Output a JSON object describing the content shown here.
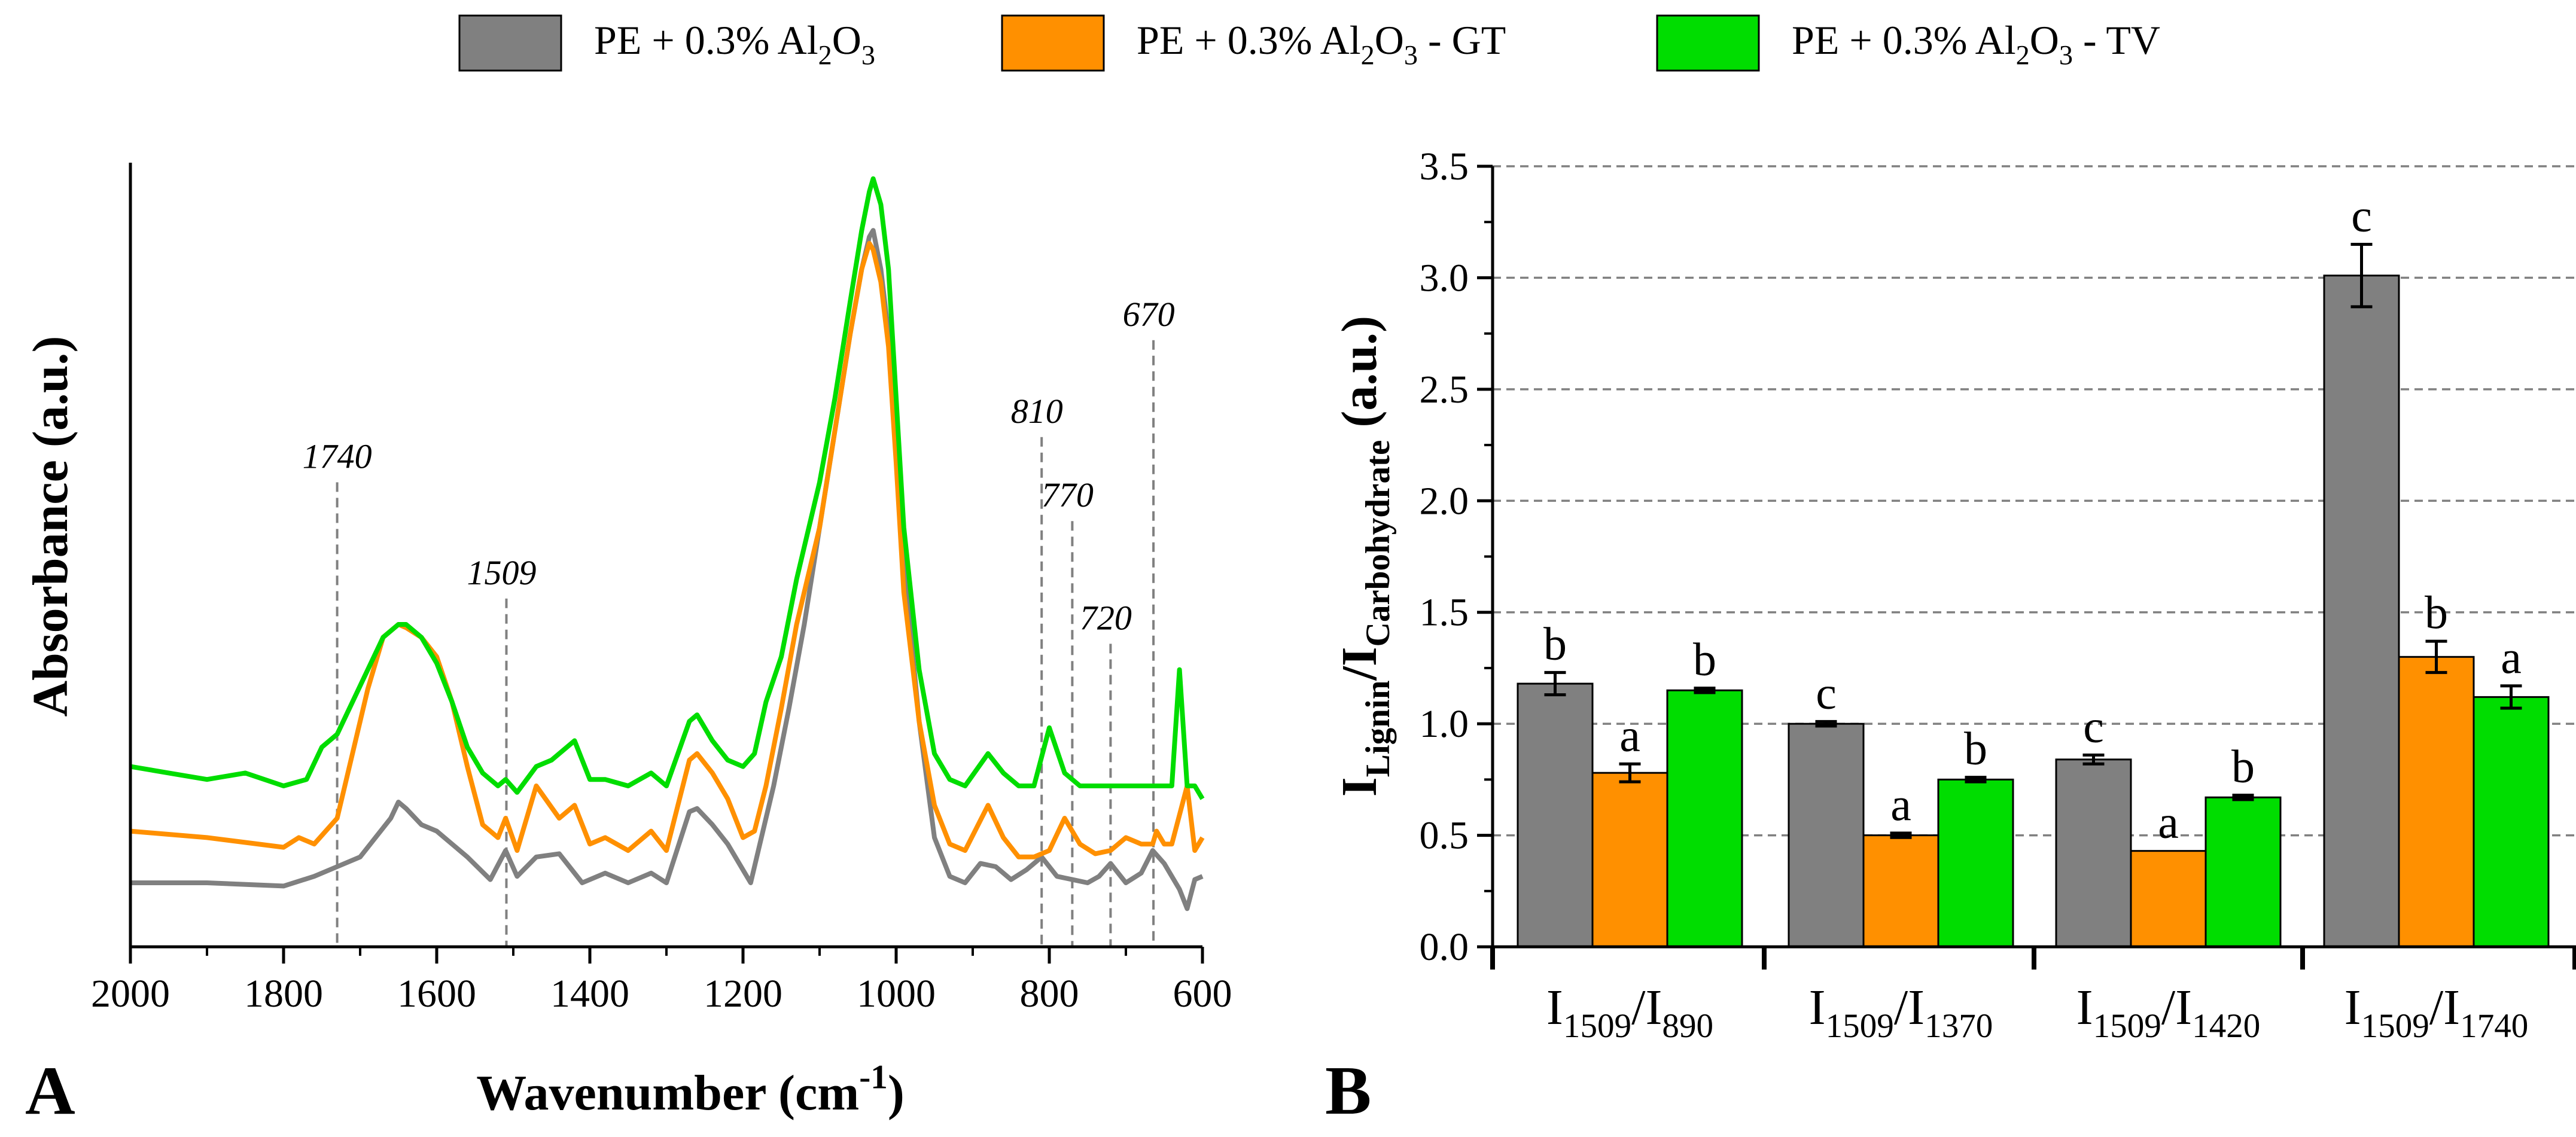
{
  "colors": {
    "gray": "#808080",
    "orange": "#ff9000",
    "green": "#00dd00",
    "grid": "#808080"
  },
  "legend": [
    {
      "pre": "PE + 0.3% Al",
      "s1": "2",
      "mid": "O",
      "s2": "3",
      "post": "",
      "color": "#808080"
    },
    {
      "pre": "PE + 0.3% Al",
      "s1": "2",
      "mid": "O",
      "s2": "3",
      "post": " - GT",
      "color": "#ff9000"
    },
    {
      "pre": "PE + 0.3% Al",
      "s1": "2",
      "mid": "O",
      "s2": "3",
      "post": " - TV",
      "color": "#00dd00"
    }
  ],
  "chart_data": [
    {
      "panel": "A",
      "type": "line",
      "xlabel": {
        "main": "Wavenumber (cm",
        "sup": "-1",
        "close": ")"
      },
      "ylabel": "Absorbance (a.u.)",
      "xlim": [
        2000,
        600
      ],
      "xticks": [
        2000,
        1800,
        1600,
        1400,
        1200,
        1000,
        800,
        600
      ],
      "peak_markers": [
        {
          "label": "1740",
          "x": 1730,
          "top": 0.67
        },
        {
          "label": "1509",
          "x": 1509,
          "top": 0.49
        },
        {
          "label": "810",
          "x": 810,
          "top": 0.74
        },
        {
          "label": "770",
          "x": 770,
          "top": 0.61
        },
        {
          "label": "720",
          "x": 720,
          "top": 0.42
        },
        {
          "label": "670",
          "x": 664,
          "top": 0.89
        }
      ],
      "series": [
        {
          "name": "PE + 0.3% Al2O3",
          "color": "#808080",
          "x": [
            2000,
            1900,
            1800,
            1760,
            1730,
            1700,
            1660,
            1650,
            1640,
            1620,
            1600,
            1560,
            1530,
            1510,
            1495,
            1470,
            1440,
            1410,
            1380,
            1350,
            1320,
            1300,
            1270,
            1260,
            1240,
            1220,
            1200,
            1190,
            1180,
            1160,
            1140,
            1120,
            1100,
            1080,
            1060,
            1045,
            1035,
            1030,
            1020,
            1010,
            1000,
            990,
            970,
            950,
            930,
            910,
            890,
            870,
            850,
            830,
            810,
            790,
            770,
            750,
            735,
            720,
            700,
            680,
            665,
            650,
            640,
            630,
            620,
            610,
            600
          ],
          "y": [
            0.05,
            0.05,
            0.045,
            0.06,
            0.075,
            0.09,
            0.15,
            0.175,
            0.165,
            0.14,
            0.13,
            0.09,
            0.055,
            0.1,
            0.06,
            0.09,
            0.095,
            0.05,
            0.065,
            0.05,
            0.065,
            0.05,
            0.16,
            0.165,
            0.14,
            0.11,
            0.07,
            0.05,
            0.1,
            0.2,
            0.32,
            0.45,
            0.6,
            0.75,
            0.9,
            1.0,
            1.05,
            1.06,
            1.0,
            0.9,
            0.75,
            0.55,
            0.3,
            0.12,
            0.06,
            0.05,
            0.08,
            0.075,
            0.055,
            0.07,
            0.09,
            0.06,
            0.055,
            0.05,
            0.06,
            0.08,
            0.05,
            0.065,
            0.1,
            0.08,
            0.06,
            0.04,
            0.01,
            0.055,
            0.06
          ]
        },
        {
          "name": "PE + 0.3% Al2O3 - GT",
          "color": "#ff9000",
          "x": [
            2000,
            1900,
            1800,
            1780,
            1760,
            1730,
            1710,
            1690,
            1670,
            1650,
            1640,
            1620,
            1600,
            1580,
            1560,
            1540,
            1520,
            1510,
            1495,
            1470,
            1440,
            1420,
            1400,
            1380,
            1350,
            1320,
            1300,
            1270,
            1260,
            1240,
            1220,
            1200,
            1185,
            1170,
            1150,
            1130,
            1100,
            1080,
            1060,
            1045,
            1035,
            1030,
            1020,
            1010,
            1000,
            990,
            970,
            950,
            930,
            910,
            880,
            860,
            840,
            820,
            800,
            780,
            760,
            740,
            720,
            700,
            680,
            665,
            660,
            650,
            640,
            620,
            610,
            600
          ],
          "y": [
            0.13,
            0.12,
            0.105,
            0.12,
            0.11,
            0.15,
            0.25,
            0.35,
            0.43,
            0.45,
            0.445,
            0.43,
            0.4,
            0.33,
            0.23,
            0.14,
            0.12,
            0.15,
            0.1,
            0.2,
            0.15,
            0.17,
            0.11,
            0.12,
            0.1,
            0.13,
            0.1,
            0.24,
            0.25,
            0.22,
            0.18,
            0.12,
            0.13,
            0.2,
            0.32,
            0.45,
            0.6,
            0.75,
            0.9,
            1.0,
            1.04,
            1.03,
            0.98,
            0.88,
            0.7,
            0.5,
            0.3,
            0.17,
            0.11,
            0.1,
            0.17,
            0.12,
            0.09,
            0.09,
            0.1,
            0.15,
            0.11,
            0.095,
            0.1,
            0.12,
            0.11,
            0.11,
            0.13,
            0.11,
            0.11,
            0.2,
            0.1,
            0.12
          ]
        },
        {
          "name": "PE + 0.3% Al2O3 - TV",
          "color": "#00dd00",
          "x": [
            2000,
            1950,
            1900,
            1850,
            1800,
            1770,
            1750,
            1730,
            1710,
            1690,
            1670,
            1650,
            1640,
            1620,
            1600,
            1580,
            1560,
            1540,
            1520,
            1510,
            1495,
            1470,
            1450,
            1420,
            1400,
            1380,
            1350,
            1320,
            1300,
            1270,
            1260,
            1240,
            1220,
            1200,
            1185,
            1170,
            1150,
            1130,
            1100,
            1080,
            1060,
            1045,
            1035,
            1030,
            1020,
            1010,
            1000,
            990,
            970,
            950,
            930,
            910,
            880,
            860,
            840,
            820,
            800,
            780,
            760,
            740,
            720,
            700,
            680,
            660,
            640,
            630,
            620,
            610,
            600
          ],
          "y": [
            0.23,
            0.22,
            0.21,
            0.22,
            0.2,
            0.21,
            0.26,
            0.28,
            0.33,
            0.38,
            0.43,
            0.45,
            0.45,
            0.43,
            0.39,
            0.33,
            0.26,
            0.22,
            0.2,
            0.21,
            0.19,
            0.23,
            0.24,
            0.27,
            0.21,
            0.21,
            0.2,
            0.22,
            0.2,
            0.3,
            0.31,
            0.27,
            0.24,
            0.23,
            0.25,
            0.33,
            0.4,
            0.52,
            0.67,
            0.8,
            0.95,
            1.06,
            1.12,
            1.14,
            1.1,
            1.0,
            0.8,
            0.6,
            0.38,
            0.25,
            0.21,
            0.2,
            0.25,
            0.22,
            0.2,
            0.2,
            0.29,
            0.22,
            0.2,
            0.2,
            0.2,
            0.2,
            0.2,
            0.2,
            0.2,
            0.38,
            0.2,
            0.2,
            0.18
          ]
        }
      ],
      "panel_letter": "A"
    },
    {
      "panel": "B",
      "type": "bar",
      "ylabel": {
        "main": "I",
        "sub1": "Lignin",
        "mid": "/I",
        "sub2": "Carbohydrate",
        "post": " (a.u.)"
      },
      "ylim": [
        0,
        3.5
      ],
      "yticks": [
        "0.0",
        "0.5",
        "1.0",
        "1.5",
        "2.0",
        "2.5",
        "3.0",
        "3.5"
      ],
      "grid": true,
      "categories": [
        {
          "a": "I",
          "b": "1509",
          "c": "/I",
          "d": "890"
        },
        {
          "a": "I",
          "b": "1509",
          "c": "/I",
          "d": "1370"
        },
        {
          "a": "I",
          "b": "1509",
          "c": "/I",
          "d": "1420"
        },
        {
          "a": "I",
          "b": "1509",
          "c": "/I",
          "d": "1740"
        }
      ],
      "series": [
        {
          "name": "PE + 0.3% Al2O3",
          "color": "#808080",
          "values": [
            1.18,
            1.0,
            0.84,
            3.01
          ],
          "errors": [
            0.05,
            0.01,
            0.02,
            0.14
          ],
          "letters": [
            "b",
            "c",
            "c",
            "c"
          ]
        },
        {
          "name": "PE + 0.3% Al2O3 - GT",
          "color": "#ff9000",
          "values": [
            0.78,
            0.5,
            0.43,
            1.3
          ],
          "errors": [
            0.04,
            0.01,
            0.0,
            0.07
          ],
          "letters": [
            "a",
            "a",
            "a",
            "b"
          ]
        },
        {
          "name": "PE + 0.3% Al2O3 - TV",
          "color": "#00dd00",
          "values": [
            1.15,
            0.75,
            0.67,
            1.12
          ],
          "errors": [
            0.01,
            0.01,
            0.01,
            0.05
          ],
          "letters": [
            "b",
            "b",
            "b",
            "a"
          ]
        }
      ],
      "panel_letter": "B"
    }
  ]
}
